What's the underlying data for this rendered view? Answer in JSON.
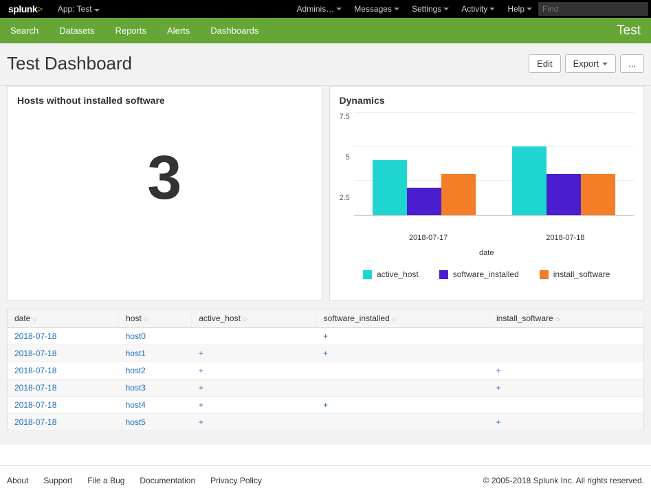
{
  "topbar": {
    "logo": "splunk",
    "app_label": "App: Test",
    "menus": [
      "Adminis…",
      "Messages",
      "Settings",
      "Activity",
      "Help"
    ],
    "search_placeholder": "Find"
  },
  "greenbar": {
    "items": [
      "Search",
      "Datasets",
      "Reports",
      "Alerts",
      "Dashboards"
    ],
    "app_name": "Test"
  },
  "title": {
    "text": "Test Dashboard",
    "buttons": {
      "edit": "Edit",
      "export": "Export",
      "more": "..."
    }
  },
  "panel_hosts": {
    "title": "Hosts without installed software",
    "value": "3"
  },
  "panel_chart": {
    "title": "Dynamics",
    "type": "bar",
    "y_ticks": [
      "7.5",
      "5",
      "2.5"
    ],
    "y_max": 7.5,
    "x_axis_label": "date",
    "categories": [
      "2018-07-17",
      "2018-07-18"
    ],
    "series": [
      {
        "name": "active_host",
        "color": "#1ed6cf"
      },
      {
        "name": "software_installed",
        "color": "#4a1ecf"
      },
      {
        "name": "install_software",
        "color": "#f47d27"
      }
    ],
    "data": [
      [
        4,
        2,
        3
      ],
      [
        5,
        3,
        3
      ]
    ],
    "grid_color": "#eeeeee",
    "axis_color": "#cccccc",
    "background_color": "#ffffff",
    "label_fontsize": 11
  },
  "table": {
    "columns": [
      "date",
      "host",
      "active_host",
      "software_installed",
      "install_software"
    ],
    "rows": [
      [
        "2018-07-18",
        "host0",
        "",
        "+",
        ""
      ],
      [
        "2018-07-18",
        "host1",
        "+",
        "+",
        ""
      ],
      [
        "2018-07-18",
        "host2",
        "+",
        "",
        "+"
      ],
      [
        "2018-07-18",
        "host3",
        "+",
        "",
        "+"
      ],
      [
        "2018-07-18",
        "host4",
        "+",
        "+",
        ""
      ],
      [
        "2018-07-18",
        "host5",
        "+",
        "",
        "+"
      ]
    ],
    "link_color": "#1e6ec1",
    "header_bg": "#f5f5f5"
  },
  "footer": {
    "links": [
      "About",
      "Support",
      "File a Bug",
      "Documentation",
      "Privacy Policy"
    ],
    "copyright": "© 2005-2018 Splunk Inc. All rights reserved."
  }
}
